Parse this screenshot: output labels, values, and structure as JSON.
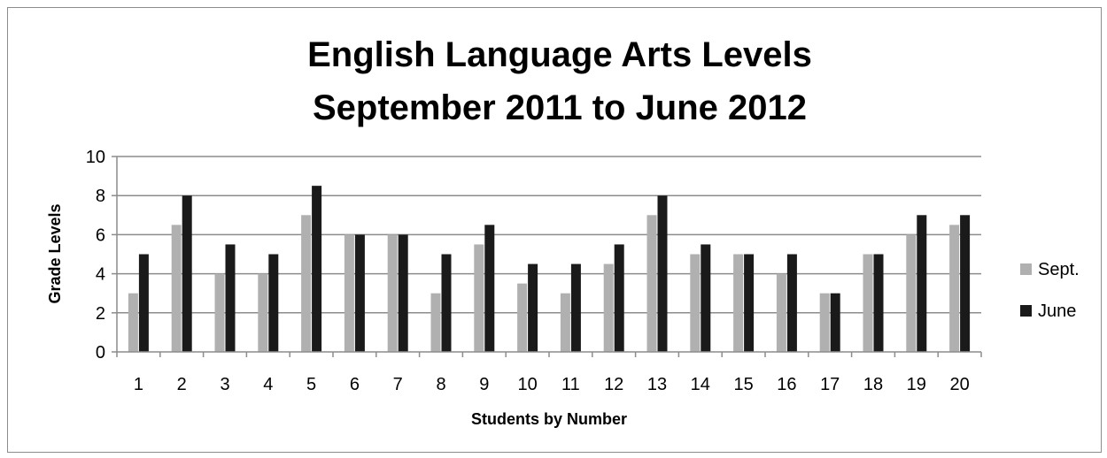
{
  "chart_data": {
    "type": "bar",
    "title_lines": [
      "English Language Arts Levels",
      "September 2011 to June 2012"
    ],
    "xlabel": "Students by Number",
    "ylabel": "Grade Levels",
    "categories": [
      "1",
      "2",
      "3",
      "4",
      "5",
      "6",
      "7",
      "8",
      "9",
      "10",
      "11",
      "12",
      "13",
      "14",
      "15",
      "16",
      "17",
      "18",
      "19",
      "20"
    ],
    "series": [
      {
        "name": "Sept.",
        "color": "#b0b0b0",
        "values": [
          3,
          6.5,
          4,
          4,
          7,
          6,
          6,
          3,
          5.5,
          3.5,
          3,
          4.5,
          7,
          5,
          5,
          4,
          3,
          5,
          6,
          6.5
        ]
      },
      {
        "name": "June",
        "color": "#1a1a1a",
        "values": [
          5,
          8,
          5.5,
          5,
          8.5,
          6,
          6,
          5,
          6.5,
          4.5,
          4.5,
          5.5,
          8,
          5.5,
          5,
          5,
          3,
          5,
          7,
          7
        ]
      }
    ],
    "ylim": [
      0,
      10
    ],
    "yticks": [
      0,
      2,
      4,
      6,
      8,
      10
    ],
    "grid": true,
    "legend_position": "right"
  }
}
